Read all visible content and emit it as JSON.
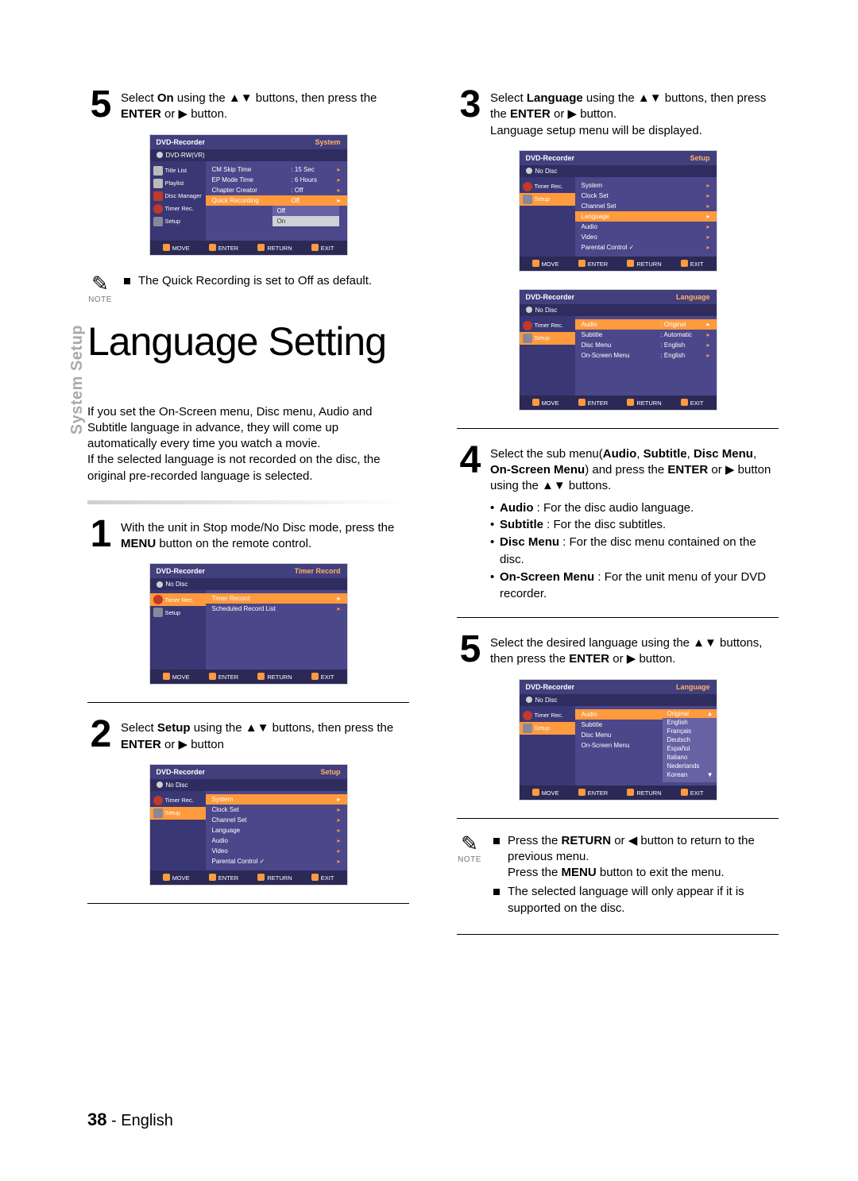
{
  "page_number": "38",
  "page_lang": "English",
  "side_label": "System Setup",
  "left": {
    "step5": {
      "pre": "Select ",
      "bold1": "On",
      "mid": " using the ▲▼ buttons, then press the ",
      "bold2": "ENTER",
      "post": " or ▶ button."
    },
    "menu5": {
      "title_l": "DVD-Recorder",
      "title_r": "System",
      "sub": "DVD-RW(VR)",
      "side": [
        "Title List",
        "Playlist",
        "Disc Manager",
        "Timer Rec.",
        "Setup"
      ],
      "rows": [
        {
          "lab": "CM Skip Time",
          "val": ": 15 Sec"
        },
        {
          "lab": "EP Mode Time",
          "val": ": 6 Hours"
        },
        {
          "lab": "Chapter Creator",
          "val": ": Off"
        },
        {
          "lab": "Quick Recording",
          "val": "Off",
          "hi": true
        }
      ],
      "opts": [
        "Off",
        "On"
      ],
      "foot": [
        "MOVE",
        "ENTER",
        "RETURN",
        "EXIT"
      ]
    },
    "note5": "The Quick Recording is set to Off as default.",
    "note_lbl": "NOTE",
    "title": "Language Setting",
    "intro1": "If you set the On-Screen menu, Disc menu, Audio and Subtitle language in advance, they will come up automatically every time you watch a movie.",
    "intro2": "If the selected language is not recorded on the disc, the original pre-recorded language is selected.",
    "step1": {
      "pre": "With the unit in Stop mode/No Disc mode, press the ",
      "bold": "MENU",
      "post": " button on the remote control."
    },
    "menu1": {
      "title_l": "DVD-Recorder",
      "title_r": "Timer Record",
      "sub": "No Disc",
      "side": [
        "Timer Rec.",
        "Setup"
      ],
      "rows": [
        {
          "lab": "Timer Record",
          "val": ""
        },
        {
          "lab": "Scheduled Record List",
          "val": ""
        }
      ],
      "foot": [
        "MOVE",
        "ENTER",
        "RETURN",
        "EXIT"
      ]
    },
    "step2": {
      "pre": "Select ",
      "bold1": "Setup",
      "mid": " using the ▲▼ buttons, then press the ",
      "bold2": "ENTER",
      "post": " or ▶ button"
    },
    "menu2": {
      "title_l": "DVD-Recorder",
      "title_r": "Setup",
      "sub": "No Disc",
      "side": [
        "Timer Rec.",
        "Setup"
      ],
      "rows": [
        {
          "lab": "System",
          "val": "",
          "hi": true
        },
        {
          "lab": "Clock Set",
          "val": ""
        },
        {
          "lab": "Channel Set",
          "val": ""
        },
        {
          "lab": "Language",
          "val": ""
        },
        {
          "lab": "Audio",
          "val": ""
        },
        {
          "lab": "Video",
          "val": ""
        },
        {
          "lab": "Parental Control ✓",
          "val": ""
        }
      ],
      "foot": [
        "MOVE",
        "ENTER",
        "RETURN",
        "EXIT"
      ]
    }
  },
  "right": {
    "step3": {
      "pre": "Select ",
      "bold1": "Language",
      "mid": " using the ▲▼ buttons, then press the ",
      "bold2": "ENTER",
      "post": " or ▶ button.",
      "line2": "Language setup menu will be displayed."
    },
    "menu3a": {
      "title_l": "DVD-Recorder",
      "title_r": "Setup",
      "sub": "No Disc",
      "side": [
        "Timer Rec.",
        "Setup"
      ],
      "rows": [
        {
          "lab": "System",
          "val": ""
        },
        {
          "lab": "Clock Set",
          "val": ""
        },
        {
          "lab": "Channel Set",
          "val": ""
        },
        {
          "lab": "Language",
          "val": "",
          "hi": true
        },
        {
          "lab": "Audio",
          "val": ""
        },
        {
          "lab": "Video",
          "val": ""
        },
        {
          "lab": "Parental Control ✓",
          "val": ""
        }
      ],
      "foot": [
        "MOVE",
        "ENTER",
        "RETURN",
        "EXIT"
      ]
    },
    "menu3b": {
      "title_l": "DVD-Recorder",
      "title_r": "Language",
      "sub": "No Disc",
      "side": [
        "Timer Rec.",
        "Setup"
      ],
      "rows": [
        {
          "lab": "Audio",
          "val": ": Original",
          "hi": true
        },
        {
          "lab": "Subtitle",
          "val": ": Automatic"
        },
        {
          "lab": "Disc Menu",
          "val": ": English"
        },
        {
          "lab": "On-Screen Menu",
          "val": ": English"
        }
      ],
      "foot": [
        "MOVE",
        "ENTER",
        "RETURN",
        "EXIT"
      ]
    },
    "step4": {
      "pre": "Select the sub menu(",
      "b1": "Audio",
      "c1": ", ",
      "b2": "Subtitle",
      "c2": ", ",
      "b3": "Disc Menu",
      "c3": ", ",
      "b4": "On-Screen Menu",
      "mid": ") and press the ",
      "b5": "ENTER",
      "post": " or ▶ button using the ▲▼ buttons.",
      "bullets": [
        {
          "b": "Audio",
          "t": " : For the disc audio language."
        },
        {
          "b": "Subtitle",
          "t": " : For the disc subtitles."
        },
        {
          "b": "Disc Menu",
          "t": " : For the disc menu contained on the disc."
        },
        {
          "b": "On-Screen Menu",
          "t": " : For the unit menu of your DVD recorder."
        }
      ]
    },
    "step5": {
      "pre": "Select the desired language using the ▲▼ buttons, then press the ",
      "bold": "ENTER",
      "post": " or ▶ button."
    },
    "menu5": {
      "title_l": "DVD-Recorder",
      "title_r": "Language",
      "sub": "No Disc",
      "side": [
        "Timer Rec.",
        "Setup"
      ],
      "rows": [
        {
          "lab": "Audio",
          "val": ""
        },
        {
          "lab": "Subtitle",
          "val": ""
        },
        {
          "lab": "Disc Menu",
          "val": ""
        },
        {
          "lab": "On-Screen Menu",
          "val": ""
        }
      ],
      "langs": [
        "Original",
        "English",
        "Français",
        "Deutsch",
        "Español",
        "Italiano",
        "Nederlands",
        "Korean"
      ],
      "foot": [
        "MOVE",
        "ENTER",
        "RETURN",
        "EXIT"
      ]
    },
    "note": {
      "lbl": "NOTE",
      "l1a": "Press the ",
      "l1b": "RETURN",
      "l1c": " or ◀ button to return to the previous menu.",
      "l2a": "Press the ",
      "l2b": "MENU",
      "l2c": " button to exit the menu.",
      "l3": "The selected language will only appear if it is supported on the disc."
    }
  }
}
